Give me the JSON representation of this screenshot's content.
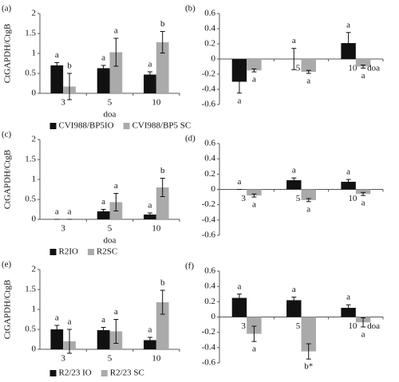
{
  "chart_data": [
    {
      "type": "bar",
      "label": "(a)",
      "ylabel": "CtGAPDH/CtgB",
      "xlabel": "doa",
      "categories": [
        "3",
        "5",
        "10"
      ],
      "ylim": [
        0,
        2
      ],
      "yticks": [
        0,
        0.5,
        1,
        1.5,
        2
      ],
      "series": [
        {
          "name": "CVI988/BP5IO",
          "color": "#111111",
          "values": [
            0.7,
            0.63,
            0.47
          ],
          "errors": [
            0.07,
            0.07,
            0.07
          ],
          "labels": [
            "a",
            "a",
            "a"
          ]
        },
        {
          "name": "CVI988/BP5 SC",
          "color": "#aaaaaa",
          "values": [
            0.17,
            1.03,
            1.28
          ],
          "errors": [
            0.33,
            0.35,
            0.27
          ],
          "labels": [
            "b",
            "a",
            "b"
          ]
        }
      ]
    },
    {
      "type": "bar",
      "label": "(b)",
      "xlabel": "doa",
      "categories": [
        "3",
        "5",
        "10"
      ],
      "ylim": [
        -0.6,
        0.6
      ],
      "yticks": [
        -0.6,
        -0.4,
        -0.2,
        0,
        0.2,
        0.4,
        0.6
      ],
      "series": [
        {
          "color": "#111111",
          "values": [
            -0.3,
            0.0,
            0.21
          ],
          "errors": [
            0.15,
            0.14,
            0.14
          ],
          "labels": [
            "a",
            "a",
            "a"
          ]
        },
        {
          "color": "#aaaaaa",
          "values": [
            -0.15,
            -0.17,
            -0.1
          ],
          "errors": [
            0.02,
            0.02,
            0.02
          ],
          "labels": [
            "a",
            "a",
            "a"
          ]
        }
      ]
    },
    {
      "type": "bar",
      "label": "(c)",
      "ylabel": "CtGAPDH/CtgB",
      "xlabel": "doa",
      "categories": [
        "3",
        "5",
        "10"
      ],
      "ylim": [
        0,
        2
      ],
      "yticks": [
        0,
        0.5,
        1,
        1.5,
        2
      ],
      "series": [
        {
          "name": "R2IO",
          "color": "#111111",
          "values": [
            0,
            0.2,
            0.12
          ],
          "errors": [
            0,
            0.05,
            0.04
          ],
          "labels": [
            "a",
            "a",
            "a"
          ]
        },
        {
          "name": "R2SC",
          "color": "#aaaaaa",
          "values": [
            0,
            0.43,
            0.8
          ],
          "errors": [
            0,
            0.22,
            0.23
          ],
          "labels": [
            "a",
            "a",
            "b"
          ]
        }
      ]
    },
    {
      "type": "bar",
      "label": "(d)",
      "categories": [
        "3",
        "5",
        "10"
      ],
      "ylim": [
        -0.6,
        0.6
      ],
      "yticks": [
        -0.6,
        -0.4,
        -0.2,
        0,
        0.2,
        0.4,
        0.6
      ],
      "series": [
        {
          "color": "#111111",
          "values": [
            0,
            0.12,
            0.1
          ],
          "errors": [
            0,
            0.03,
            0.03
          ],
          "labels": [
            "a",
            "a",
            "a"
          ]
        },
        {
          "color": "#aaaaaa",
          "values": [
            -0.08,
            -0.14,
            -0.06
          ],
          "errors": [
            0.02,
            0.02,
            0.02
          ],
          "labels": [
            "a",
            "a",
            "a"
          ]
        }
      ]
    },
    {
      "type": "bar",
      "label": "(e)",
      "ylabel": "CtGAPDH/CtgB",
      "categories": [
        "3",
        "5",
        "10"
      ],
      "ylim": [
        0,
        2
      ],
      "yticks": [
        0,
        0.5,
        1,
        1.5,
        2
      ],
      "series": [
        {
          "name": "R2/23 IO",
          "color": "#111111",
          "values": [
            0.5,
            0.48,
            0.23
          ],
          "errors": [
            0.1,
            0.07,
            0.07
          ],
          "labels": [
            "a",
            "a",
            "a"
          ]
        },
        {
          "name": "R2/23 SC",
          "color": "#aaaaaa",
          "values": [
            0.2,
            0.45,
            1.18
          ],
          "errors": [
            0.3,
            0.3,
            0.3
          ],
          "labels": [
            "a",
            "a",
            "b"
          ]
        }
      ]
    },
    {
      "type": "bar",
      "label": "(f)",
      "xlabel": "doa",
      "categories": [
        "3",
        "5",
        "10"
      ],
      "ylim": [
        -0.6,
        0.6
      ],
      "yticks": [
        -0.6,
        -0.4,
        -0.2,
        0,
        0.2,
        0.4,
        0.6
      ],
      "series": [
        {
          "color": "#111111",
          "values": [
            0.25,
            0.22,
            0.12
          ],
          "errors": [
            0.05,
            0.04,
            0.04
          ],
          "labels": [
            "a",
            "a",
            "a"
          ]
        },
        {
          "color": "#aaaaaa",
          "values": [
            -0.22,
            -0.45,
            -0.07
          ],
          "errors": [
            0.1,
            0.1,
            0.06
          ],
          "labels": [
            "a",
            "b*",
            "a"
          ]
        }
      ]
    }
  ]
}
